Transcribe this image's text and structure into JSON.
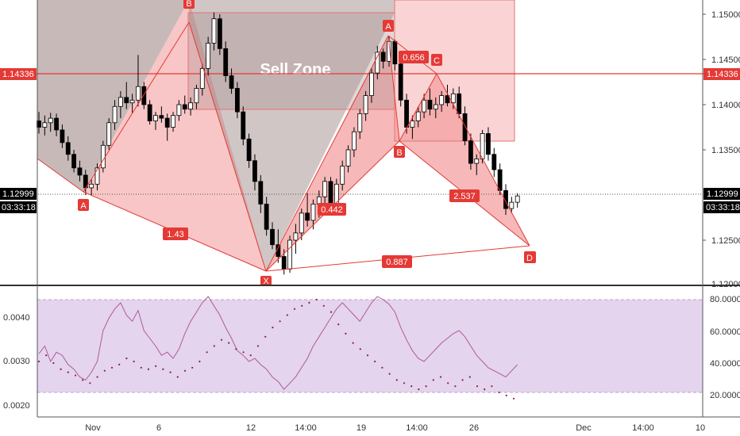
{
  "colors": {
    "pattern_red": "#e53935",
    "pattern_fill": "#f3a0a0",
    "candle_up": "#ffffff",
    "candle_down": "#000000",
    "rsi_band": "#e4d4ee",
    "rsi_line": "#b05a9a",
    "price_line": "#e53935",
    "tag_black": "#000000"
  },
  "sell_zone_label": "Sell Zone",
  "price_axis": {
    "ticks": [
      "1.15000",
      "1.14500",
      "1.14000",
      "1.13500",
      "1.13000",
      "1.12500",
      "1.12000"
    ],
    "current_price": "1.12999",
    "countdown": "03:33:18",
    "level_tag": "1.14336"
  },
  "rsi_axis": {
    "left_ticks": [
      "0.0040",
      "0.0030",
      "0.0020"
    ],
    "right_ticks": [
      "80.0000",
      "60.0000",
      "40.0000",
      "20.0000"
    ]
  },
  "time_axis": {
    "labels": [
      "Nov",
      "6",
      "12",
      "14:00",
      "19",
      "14:00",
      "26",
      "Dec",
      "14:00",
      "10"
    ]
  },
  "pattern_points": {
    "left": [
      "A",
      "B",
      "X"
    ],
    "right": [
      "A",
      "B",
      "C",
      "D"
    ]
  },
  "ratios": [
    "1.43",
    "0.442",
    "0.887",
    "0.656",
    "2.537"
  ],
  "chart_data": {
    "type": "candlestick",
    "title": "",
    "ylim": [
      1.1195,
      1.1518
    ],
    "current_price": 1.12999,
    "horizontal_level": 1.14336,
    "ohlc": [
      [
        1.1382,
        1.1392,
        1.1368,
        1.1375
      ],
      [
        1.1375,
        1.1388,
        1.1366,
        1.138
      ],
      [
        1.138,
        1.1391,
        1.137,
        1.1385
      ],
      [
        1.1385,
        1.139,
        1.1365,
        1.1372
      ],
      [
        1.1372,
        1.1378,
        1.1352,
        1.1358
      ],
      [
        1.1358,
        1.1365,
        1.1338,
        1.1345
      ],
      [
        1.1345,
        1.135,
        1.1325,
        1.133
      ],
      [
        1.133,
        1.1338,
        1.1315,
        1.1322
      ],
      [
        1.1322,
        1.1328,
        1.13,
        1.1308
      ],
      [
        1.1308,
        1.1318,
        1.13,
        1.1312
      ],
      [
        1.1312,
        1.1335,
        1.1305,
        1.133
      ],
      [
        1.133,
        1.136,
        1.1325,
        1.1355
      ],
      [
        1.1355,
        1.1385,
        1.135,
        1.138
      ],
      [
        1.138,
        1.1405,
        1.1372,
        1.1398
      ],
      [
        1.1398,
        1.1415,
        1.1385,
        1.1408
      ],
      [
        1.1408,
        1.1425,
        1.1395,
        1.1402
      ],
      [
        1.1402,
        1.1412,
        1.139,
        1.1405
      ],
      [
        1.1405,
        1.1455,
        1.1398,
        1.142
      ],
      [
        1.142,
        1.1425,
        1.1395,
        1.14
      ],
      [
        1.14,
        1.1405,
        1.1378,
        1.1382
      ],
      [
        1.1382,
        1.1392,
        1.1372,
        1.1388
      ],
      [
        1.1388,
        1.1398,
        1.138,
        1.1385
      ],
      [
        1.1385,
        1.139,
        1.136,
        1.1375
      ],
      [
        1.1375,
        1.1392,
        1.137,
        1.1388
      ],
      [
        1.1388,
        1.1405,
        1.1382,
        1.14
      ],
      [
        1.14,
        1.141,
        1.139,
        1.1395
      ],
      [
        1.1395,
        1.1408,
        1.1388,
        1.1402
      ],
      [
        1.1402,
        1.1422,
        1.1395,
        1.1418
      ],
      [
        1.1418,
        1.1445,
        1.141,
        1.144
      ],
      [
        1.144,
        1.1475,
        1.1432,
        1.1468
      ],
      [
        1.1468,
        1.1502,
        1.146,
        1.1495
      ],
      [
        1.1495,
        1.15,
        1.1455,
        1.1462
      ],
      [
        1.1462,
        1.147,
        1.1425,
        1.1432
      ],
      [
        1.1432,
        1.144,
        1.1412,
        1.1418
      ],
      [
        1.1418,
        1.1425,
        1.1385,
        1.1392
      ],
      [
        1.1392,
        1.1398,
        1.1355,
        1.1362
      ],
      [
        1.1362,
        1.1368,
        1.133,
        1.1338
      ],
      [
        1.1338,
        1.1345,
        1.1305,
        1.1315
      ],
      [
        1.1315,
        1.1322,
        1.128,
        1.129
      ],
      [
        1.129,
        1.1298,
        1.1255,
        1.1262
      ],
      [
        1.1262,
        1.127,
        1.124,
        1.1245
      ],
      [
        1.1245,
        1.1262,
        1.1225,
        1.1232
      ],
      [
        1.1232,
        1.124,
        1.1212,
        1.1218
      ],
      [
        1.1218,
        1.1255,
        1.1214,
        1.125
      ],
      [
        1.125,
        1.1268,
        1.1235,
        1.1258
      ],
      [
        1.1258,
        1.1285,
        1.125,
        1.128
      ],
      [
        1.128,
        1.1302,
        1.1265,
        1.1272
      ],
      [
        1.1272,
        1.1295,
        1.1262,
        1.129
      ],
      [
        1.129,
        1.1305,
        1.1275,
        1.1298
      ],
      [
        1.1298,
        1.132,
        1.129,
        1.1315
      ],
      [
        1.1315,
        1.132,
        1.1278,
        1.1285
      ],
      [
        1.1285,
        1.1318,
        1.1278,
        1.1312
      ],
      [
        1.1312,
        1.1338,
        1.1305,
        1.1332
      ],
      [
        1.1332,
        1.1355,
        1.1325,
        1.135
      ],
      [
        1.135,
        1.1375,
        1.1342,
        1.137
      ],
      [
        1.137,
        1.1395,
        1.1362,
        1.139
      ],
      [
        1.139,
        1.1415,
        1.1382,
        1.141
      ],
      [
        1.141,
        1.144,
        1.1402,
        1.1435
      ],
      [
        1.1435,
        1.1465,
        1.1428,
        1.1458
      ],
      [
        1.1458,
        1.1462,
        1.144,
        1.1448
      ],
      [
        1.1448,
        1.1475,
        1.1442,
        1.147
      ],
      [
        1.147,
        1.1472,
        1.1438,
        1.1445
      ],
      [
        1.1445,
        1.1452,
        1.1398,
        1.1405
      ],
      [
        1.1405,
        1.1412,
        1.1368,
        1.1375
      ],
      [
        1.1375,
        1.1388,
        1.1362,
        1.1382
      ],
      [
        1.1382,
        1.1398,
        1.1375,
        1.1392
      ],
      [
        1.1392,
        1.1412,
        1.1385,
        1.1405
      ],
      [
        1.1405,
        1.1418,
        1.1388,
        1.1395
      ],
      [
        1.1395,
        1.1408,
        1.1385,
        1.14
      ],
      [
        1.14,
        1.1415,
        1.1392,
        1.141
      ],
      [
        1.141,
        1.1422,
        1.1398,
        1.1402
      ],
      [
        1.1402,
        1.1418,
        1.1395,
        1.1412
      ],
      [
        1.1412,
        1.142,
        1.1385,
        1.139
      ],
      [
        1.139,
        1.1398,
        1.1355,
        1.136
      ],
      [
        1.136,
        1.1368,
        1.1328,
        1.1335
      ],
      [
        1.1335,
        1.1345,
        1.1322,
        1.134
      ],
      [
        1.134,
        1.1372,
        1.1335,
        1.1368
      ],
      [
        1.1368,
        1.1375,
        1.1338,
        1.1345
      ],
      [
        1.1345,
        1.1352,
        1.132,
        1.1328
      ],
      [
        1.1328,
        1.1335,
        1.13,
        1.1305
      ],
      [
        1.1305,
        1.1312,
        1.1278,
        1.1285
      ],
      [
        1.1285,
        1.1298,
        1.128,
        1.1292
      ],
      [
        1.1292,
        1.1302,
        1.1286,
        1.1299
      ]
    ]
  },
  "rsi_data": {
    "right_range": [
      10,
      90
    ],
    "line": [
      45,
      50,
      40,
      46,
      44,
      38,
      35,
      30,
      28,
      33,
      40,
      60,
      68,
      74,
      78,
      70,
      66,
      73,
      60,
      55,
      50,
      44,
      46,
      42,
      48,
      58,
      66,
      72,
      78,
      82,
      76,
      70,
      62,
      55,
      47,
      44,
      40,
      42,
      38,
      35,
      30,
      27,
      22,
      26,
      30,
      36,
      42,
      50,
      56,
      62,
      68,
      74,
      78,
      74,
      70,
      66,
      72,
      78,
      82,
      80,
      77,
      72,
      62,
      54,
      47,
      42,
      40,
      44,
      48,
      52,
      55,
      58,
      60,
      56,
      50,
      44,
      40,
      36,
      34,
      32,
      30,
      34,
      38
    ],
    "dots": [
      40,
      44,
      39,
      35,
      33,
      31,
      28,
      26,
      30,
      34,
      36,
      38,
      42,
      40,
      36,
      35,
      37,
      35,
      33,
      30,
      34,
      36,
      40,
      46,
      50,
      54,
      52,
      48,
      46,
      44,
      50,
      56,
      62,
      66,
      70,
      74,
      76,
      78,
      80,
      76,
      72,
      64,
      58,
      52,
      48,
      44,
      40,
      36,
      32,
      28,
      26,
      24,
      22,
      24,
      28,
      30,
      26,
      24,
      28,
      30,
      24,
      22,
      24,
      20,
      18,
      16
    ]
  }
}
